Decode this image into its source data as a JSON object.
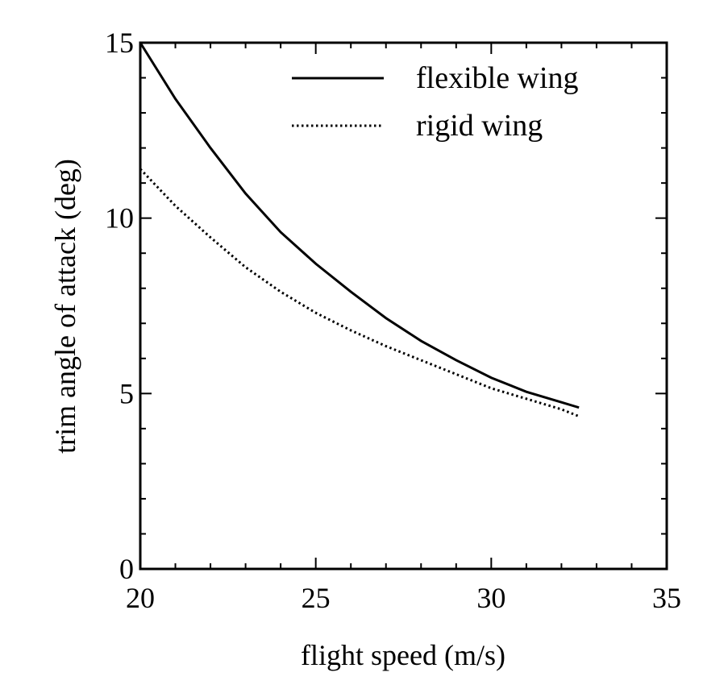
{
  "chart_data": {
    "type": "line",
    "title": "",
    "xlabel": "flight speed (m/s)",
    "ylabel": "trim angle of attack (deg)",
    "xlim": [
      20,
      35
    ],
    "ylim": [
      0,
      15
    ],
    "x_ticks": [
      20,
      25,
      30,
      35
    ],
    "y_ticks": [
      0,
      5,
      10,
      15
    ],
    "x_tick_labels": [
      "20",
      "25",
      "30",
      "35"
    ],
    "y_tick_labels": [
      "0",
      "5",
      "10",
      "15"
    ],
    "grid": false,
    "legend_position": "top-right",
    "x": [
      20,
      21,
      22,
      23,
      24,
      25,
      26,
      27,
      28,
      29,
      30,
      31,
      32,
      32.5
    ],
    "series": [
      {
        "name": "flexible wing",
        "style": "solid",
        "color": "#000000",
        "values": [
          15.0,
          13.4,
          12.0,
          10.7,
          9.6,
          8.7,
          7.9,
          7.15,
          6.5,
          5.95,
          5.45,
          5.05,
          4.75,
          4.6
        ]
      },
      {
        "name": "rigid wing",
        "style": "dotted",
        "color": "#000000",
        "values": [
          11.4,
          10.35,
          9.45,
          8.6,
          7.9,
          7.3,
          6.8,
          6.35,
          5.95,
          5.55,
          5.15,
          4.85,
          4.55,
          4.35
        ]
      }
    ]
  }
}
